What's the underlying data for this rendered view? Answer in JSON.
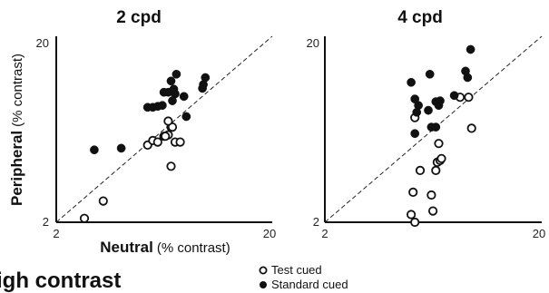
{
  "chart_data": [
    {
      "type": "scatter",
      "title": "2 cpd",
      "xlabel_bold": "Neutral",
      "xlabel_unit": "(% contrast)",
      "ylabel_bold": "Peripheral",
      "ylabel_unit": "(% contrast)",
      "scale": "log",
      "xlim": [
        2,
        20
      ],
      "ylim": [
        2,
        20
      ],
      "x_ticks": [
        "2",
        "20"
      ],
      "y_ticks": [
        "2",
        "20"
      ],
      "identity_line": true,
      "series": [
        {
          "name": "Test cued",
          "marker": "open-circle",
          "points": [
            [
              2.7,
              2.1
            ],
            [
              3.3,
              2.6
            ],
            [
              5.3,
              5.2
            ],
            [
              5.6,
              5.5
            ],
            [
              5.9,
              5.4
            ],
            [
              6.3,
              5.8
            ],
            [
              6.6,
              5.9
            ],
            [
              6.8,
              6.5
            ],
            [
              7.1,
              5.4
            ],
            [
              7.5,
              5.4
            ],
            [
              6.8,
              4.0
            ],
            [
              6.9,
              6.5
            ],
            [
              6.4,
              5.8
            ],
            [
              6.6,
              7.0
            ]
          ]
        },
        {
          "name": "Standard cued",
          "marker": "filled-circle",
          "points": [
            [
              3.0,
              4.9
            ],
            [
              4.0,
              5.0
            ],
            [
              5.3,
              8.3
            ],
            [
              5.6,
              8.3
            ],
            [
              5.9,
              8.4
            ],
            [
              6.2,
              8.5
            ],
            [
              6.3,
              10.0
            ],
            [
              6.6,
              10.0
            ],
            [
              6.8,
              11.5
            ],
            [
              6.9,
              9.0
            ],
            [
              7.0,
              10.4
            ],
            [
              7.1,
              9.8
            ],
            [
              7.2,
              12.5
            ],
            [
              7.8,
              9.5
            ],
            [
              8.0,
              7.4
            ],
            [
              9.5,
              10.5
            ],
            [
              9.8,
              12.0
            ],
            [
              9.6,
              11.0
            ]
          ]
        }
      ]
    },
    {
      "type": "scatter",
      "title": "4 cpd",
      "xlabel_bold": "",
      "xlabel_unit": "",
      "ylabel_bold": "",
      "ylabel_unit": "",
      "scale": "log",
      "xlim": [
        2,
        20
      ],
      "ylim": [
        2,
        20
      ],
      "x_ticks": [
        "2",
        "20"
      ],
      "y_ticks": [
        "20",
        "2"
      ],
      "identity_line": true,
      "series": [
        {
          "name": "Test cued",
          "marker": "open-circle",
          "points": [
            [
              5.0,
              2.2
            ],
            [
              5.2,
              2.0
            ],
            [
              5.1,
              2.9
            ],
            [
              5.5,
              3.8
            ],
            [
              5.2,
              7.3
            ],
            [
              6.2,
              2.8
            ],
            [
              6.3,
              2.3
            ],
            [
              6.5,
              3.8
            ],
            [
              6.6,
              4.2
            ],
            [
              6.7,
              5.3
            ],
            [
              6.8,
              4.3
            ],
            [
              6.9,
              4.4
            ],
            [
              8.4,
              9.4
            ],
            [
              9.2,
              9.4
            ],
            [
              9.5,
              6.4
            ]
          ]
        },
        {
          "name": "Standard cued",
          "marker": "filled-circle",
          "points": [
            [
              5.0,
              11.3
            ],
            [
              5.2,
              9.2
            ],
            [
              5.3,
              7.8
            ],
            [
              5.2,
              6.0
            ],
            [
              5.4,
              8.5
            ],
            [
              6.0,
              8.0
            ],
            [
              6.1,
              12.5
            ],
            [
              6.2,
              6.5
            ],
            [
              6.5,
              8.9
            ],
            [
              6.5,
              6.5
            ],
            [
              6.7,
              8.5
            ],
            [
              6.8,
              9.0
            ],
            [
              7.9,
              9.6
            ],
            [
              9.1,
              12.0
            ],
            [
              8.9,
              13.0
            ],
            [
              9.4,
              17.0
            ]
          ]
        }
      ]
    }
  ],
  "legend": {
    "items": [
      {
        "label": "Test cued",
        "marker": "open-circle"
      },
      {
        "label": "Standard cued",
        "marker": "filled-circle"
      }
    ]
  },
  "partial_heading": "igh contrast"
}
